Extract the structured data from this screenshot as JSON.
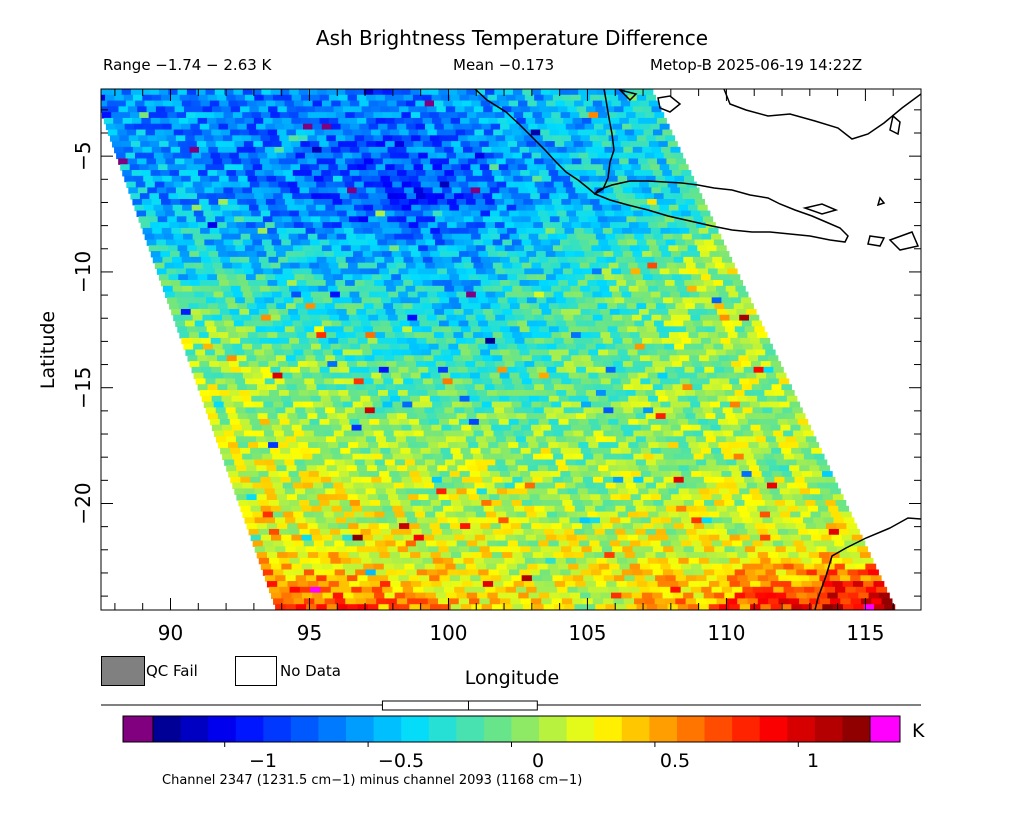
{
  "header": {
    "title": "Ash Brightness Temperature Difference",
    "range": "Range −1.74 − 2.63 K",
    "mean": "Mean −0.173",
    "satellite": "Metop-B 2025-06-19 14:22Z"
  },
  "legend": {
    "qc_fail_label": "QC Fail",
    "no_data_label": "No Data",
    "qc_fail_color": "#808080",
    "no_data_color": "#ffffff"
  },
  "colorbar": {
    "unit": "K",
    "tick_labels": [
      "−1",
      "−0.5",
      "0",
      "0.5",
      "1"
    ],
    "ticks": [
      -1,
      -0.5,
      0,
      0.5,
      1
    ],
    "range": [
      -1.25,
      1.25
    ],
    "under_color": "#800080",
    "over_color": "#ff00ff",
    "box_range": [
      -0.45,
      0.09
    ],
    "box_mark": -0.15,
    "footnote": "Channel 2347 (1231.5 cm−1) minus channel 2093 (1168 cm−1)"
  },
  "chart_data": {
    "type": "heatmap",
    "title": "Ash Brightness Temperature Difference",
    "xlabel": "Longitude",
    "ylabel": "Latitude",
    "xlim": [
      87.5,
      117
    ],
    "ylim": [
      -24.6,
      -2.1
    ],
    "x_ticks": [
      90,
      95,
      100,
      105,
      110,
      115
    ],
    "y_ticks": [
      -5,
      -10,
      -15,
      -20
    ],
    "x_tick_labels": [
      "90",
      "95",
      "100",
      "105",
      "110",
      "115"
    ],
    "y_tick_labels": [
      "−5",
      "−10",
      "−15",
      "−20"
    ],
    "value_unit": "K",
    "color_range": [
      -1.25,
      1.25
    ],
    "swath_corners": {
      "top_left": [
        87.2,
        -2.1
      ],
      "top_right": [
        107.3,
        -2.1
      ],
      "bottom_right": [
        116.1,
        -24.6
      ],
      "bottom_left": [
        93.8,
        -24.6
      ]
    },
    "value_field": [
      {
        "lat": -3,
        "west": -0.55,
        "center": -0.65,
        "east": -0.3
      },
      {
        "lat": -7,
        "west": -0.45,
        "center": -0.8,
        "east": -0.2
      },
      {
        "lat": -10,
        "west": -0.2,
        "center": -0.45,
        "east": 0.15
      },
      {
        "lat": -14,
        "west": 0.1,
        "center": -0.2,
        "east": 0.15
      },
      {
        "lat": -18,
        "west": 0.2,
        "center": 0.05,
        "east": 0.1
      },
      {
        "lat": -22,
        "west": 0.3,
        "center": 0.2,
        "east": 0.3
      },
      {
        "lat": -24.5,
        "west": 0.85,
        "center": 0.2,
        "east": 1.2
      }
    ],
    "mean": -0.173,
    "value_range": [
      -1.74,
      2.63
    ],
    "grid": false
  }
}
